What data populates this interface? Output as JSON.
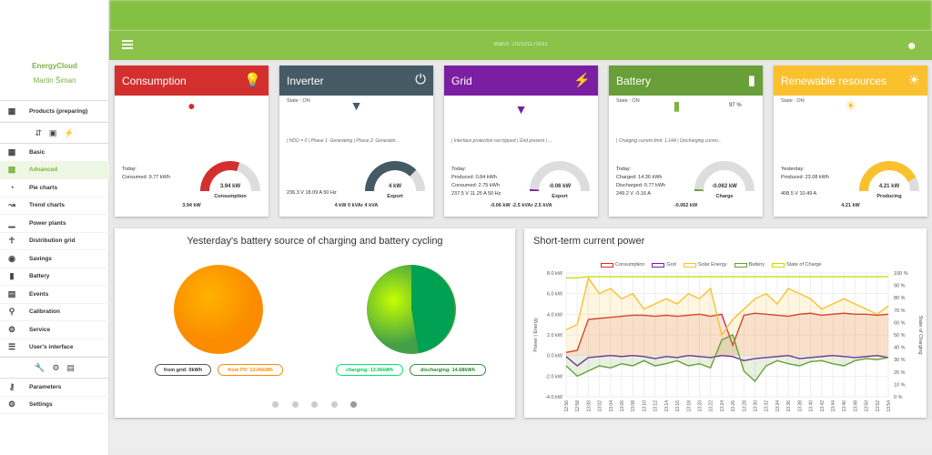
{
  "appbar": {
    "watch": "Watch: 202101170031"
  },
  "sidebar": {
    "brand": "EnergyCloud",
    "user": "Martin Šiman",
    "products": "Products (preparing)",
    "items": [
      "Basic",
      "Advanced",
      "Pie charts",
      "Trend charts",
      "Power plants",
      "Distribution grid",
      "Savings",
      "Battery",
      "Events",
      "Calibration",
      "Service",
      "User's interface"
    ],
    "bottom_items": [
      "Parameters",
      "Settings"
    ]
  },
  "cards": {
    "consumption": {
      "title": "Consumption",
      "today": "Today:",
      "consumed": "Consumed: 9.77 kWh",
      "gauge_value": "3.94 kW",
      "gauge_label": "Consumption",
      "foot": "3.94 kW",
      "color": "#d32f2f",
      "fraction": 0.6
    },
    "inverter": {
      "title": "Inverter",
      "state": "State : ON",
      "info": "| HDO = 0 | Phase 1: Generating | Phase 2: Generatin...",
      "line1": "236.3 V  18.09 A  50 Hz",
      "gauge_value": "4 kW",
      "gauge_label": "Export",
      "foot": "4 kW  0 kVAr  4 kVA",
      "color": "#455a64",
      "fraction": 0.75
    },
    "grid": {
      "title": "Grid",
      "info": "| Interface protection not tripped | Grid present | ...",
      "today": "Today:",
      "produced": "Produced: 0.84 kWh",
      "consumed": "Consumed: 2.75 kWh",
      "line1": "237.5 V  11.25 A  50 Hz",
      "gauge_value": "-0.06 kW",
      "gauge_label": "Export",
      "foot": "-0.06 kW  -2.5 kVAr  2.5 kVA",
      "color": "#7b1fa2",
      "fraction": 0.02
    },
    "battery": {
      "title": "Battery",
      "state": "State : ON",
      "soc": "97 %",
      "info": "| Charging current limit: 1.14A | Discharging curren...",
      "today": "Today:",
      "charged": "Charged: 14.36 kWh",
      "discharged": "Discharged: 0.77 kWh",
      "line1": "249.2 V  -0.16 A",
      "gauge_value": "-0.062 kW",
      "gauge_label": "Charge",
      "foot": "-0.062 kW",
      "color": "#689f38",
      "fraction": 0.02
    },
    "renewable": {
      "title": "Renewable resources",
      "state": "State : ON",
      "yesterday": "Yesterday:",
      "produced": "Produced: 23.08 kWh",
      "line1": "408.5 V  10.49 A",
      "gauge_value": "4.21 kW",
      "gauge_label": "Producing",
      "foot": "4.21 kW",
      "color": "#fbc02d",
      "fraction": 0.85
    }
  },
  "pie_panel": {
    "title": "Yesterday's battery source of charging and battery cycling",
    "from_grid": "from grid: 0kWh",
    "from_pv": "from PV: 13.06kWh",
    "charging": "charging: 13.06kWh",
    "discharging": "discharging: 14.68kWh"
  },
  "chart_panel": {
    "title": "Short-term current power",
    "ylabel_left": "Power | Energy",
    "ylabel_right": "State of Charging"
  },
  "chart_data": {
    "type": "line",
    "legend": [
      "Consumption",
      "Grid",
      "Solar Energy",
      "Battery",
      "State of Charge"
    ],
    "y_left_ticks": [
      "8.0 kW",
      "6.0 kW",
      "4.0 kW",
      "2.0 kW",
      "0.0 kW",
      "-2.0 kW",
      "-4.0 kW"
    ],
    "y_right_ticks": [
      "100 %",
      "90 %",
      "80 %",
      "70 %",
      "60 %",
      "50 %",
      "40 %",
      "30 %",
      "20 %",
      "10 %",
      "0 %"
    ],
    "ylim": [
      -4,
      8
    ],
    "x_ticks": [
      "12:56",
      "12:58",
      "13:00",
      "13:02",
      "13:04",
      "13:06",
      "13:08",
      "13:10",
      "13:12",
      "13:14",
      "13:16",
      "13:18",
      "13:20",
      "13:22",
      "13:24",
      "13:26",
      "13:28",
      "13:30",
      "13:32",
      "13:34",
      "13:36",
      "13:38",
      "13:40",
      "13:42",
      "13:44",
      "13:46",
      "13:48",
      "13:50",
      "13:52",
      "13:54"
    ],
    "series": [
      {
        "name": "Consumption",
        "color": "#d32f2f",
        "values": [
          0.3,
          0.5,
          3.5,
          3.6,
          3.7,
          3.8,
          3.9,
          3.9,
          3.8,
          3.9,
          3.8,
          3.9,
          4.0,
          3.8,
          4.0,
          1.0,
          3.9,
          4.1,
          4.0,
          3.9,
          3.8,
          4.0,
          4.1,
          3.9,
          4.0,
          4.1,
          4.0,
          4.0,
          3.9,
          4.0
        ]
      },
      {
        "name": "Grid",
        "color": "#7b1fa2",
        "values": [
          -0.1,
          -1.0,
          -0.2,
          -0.1,
          0.0,
          -0.1,
          0.0,
          -0.1,
          -0.3,
          -0.1,
          -0.2,
          0.0,
          -0.1,
          -0.2,
          0.0,
          -0.1,
          -0.5,
          -0.3,
          -0.2,
          -0.1,
          0.0,
          -0.3,
          -0.2,
          -0.1,
          0.0,
          -0.1,
          -0.2,
          -0.1,
          0.0,
          -0.2
        ]
      },
      {
        "name": "Solar Energy",
        "color": "#fbc02d",
        "values": [
          2.5,
          3.0,
          7.5,
          6.0,
          6.5,
          5.5,
          6.0,
          4.5,
          5.0,
          5.5,
          5.0,
          6.0,
          5.5,
          6.5,
          2.0,
          3.5,
          4.5,
          5.5,
          6.0,
          5.0,
          6.5,
          6.0,
          5.5,
          4.5,
          5.0,
          5.5,
          5.0,
          4.5,
          4.0,
          4.8
        ]
      },
      {
        "name": "Battery",
        "color": "#689f38",
        "values": [
          -1.0,
          -2.0,
          -1.5,
          -1.0,
          -1.2,
          -0.8,
          -1.0,
          -0.5,
          -1.0,
          -0.8,
          -0.5,
          -1.0,
          -0.8,
          -1.2,
          1.5,
          2.0,
          -1.5,
          -2.5,
          -1.0,
          -0.5,
          -0.8,
          -1.0,
          -0.6,
          -0.5,
          -0.8,
          -1.0,
          -0.5,
          -0.3,
          -0.4,
          -0.2
        ]
      },
      {
        "name": "State of Charge",
        "color": "#c6e000",
        "axis": "right",
        "values": [
          96,
          96,
          97,
          97,
          97,
          97,
          97,
          97,
          97,
          97,
          97,
          97,
          97,
          97,
          97,
          97,
          97,
          97,
          97,
          97,
          97,
          97,
          97,
          97,
          97,
          97,
          97,
          97,
          97,
          97
        ]
      }
    ]
  }
}
